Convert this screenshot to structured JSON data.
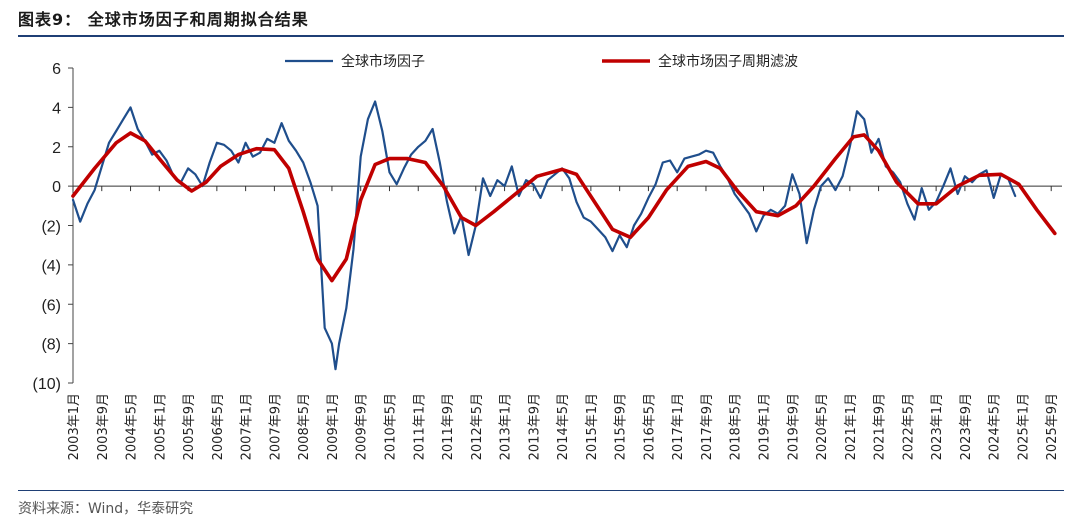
{
  "header": {
    "title": "图表9：  全球市场因子和周期拟合结果"
  },
  "footer": {
    "source": "资料来源：Wind，华泰研究"
  },
  "chart_data": {
    "type": "line",
    "ylim": [
      -10,
      6
    ],
    "yticks": [
      6,
      4,
      2,
      0,
      -2,
      -4,
      -6,
      -8,
      -10
    ],
    "ytick_labels": [
      "6",
      "4",
      "2",
      "0",
      "(2)",
      "(4)",
      "(6)",
      "(8)",
      "(10)"
    ],
    "xlim": [
      "2003-01",
      "2025-12"
    ],
    "xtick_labels": [
      "2003年1月",
      "2003年9月",
      "2004年5月",
      "2005年1月",
      "2005年9月",
      "2006年5月",
      "2007年1月",
      "2007年9月",
      "2008年5月",
      "2009年1月",
      "2009年9月",
      "2010年5月",
      "2011年1月",
      "2011年9月",
      "2012年5月",
      "2013年1月",
      "2013年9月",
      "2014年5月",
      "2015年1月",
      "2015年9月",
      "2016年5月",
      "2017年1月",
      "2017年9月",
      "2018年5月",
      "2019年1月",
      "2019年9月",
      "2020年5月",
      "2021年1月",
      "2021年9月",
      "2022年5月",
      "2023年1月",
      "2023年9月",
      "2024年5月",
      "2025年1月",
      "2025年9月"
    ],
    "grid": false,
    "legend_position": "top",
    "series": [
      {
        "name": "全球市场因子",
        "color": "#1f4e8c",
        "points": [
          [
            "2003-01",
            -0.7
          ],
          [
            "2003-03",
            -1.8
          ],
          [
            "2003-05",
            -0.9
          ],
          [
            "2003-07",
            -0.2
          ],
          [
            "2003-09",
            1.0
          ],
          [
            "2003-11",
            2.2
          ],
          [
            "2004-01",
            2.8
          ],
          [
            "2004-03",
            3.4
          ],
          [
            "2004-05",
            4.0
          ],
          [
            "2004-07",
            2.9
          ],
          [
            "2004-09",
            2.3
          ],
          [
            "2004-11",
            1.6
          ],
          [
            "2005-01",
            1.8
          ],
          [
            "2005-03",
            1.3
          ],
          [
            "2005-05",
            0.5
          ],
          [
            "2005-07",
            0.2
          ],
          [
            "2005-09",
            0.9
          ],
          [
            "2005-11",
            0.6
          ],
          [
            "2006-01",
            0.0
          ],
          [
            "2006-03",
            1.2
          ],
          [
            "2006-05",
            2.2
          ],
          [
            "2006-07",
            2.1
          ],
          [
            "2006-09",
            1.8
          ],
          [
            "2006-11",
            1.2
          ],
          [
            "2007-01",
            2.2
          ],
          [
            "2007-03",
            1.5
          ],
          [
            "2007-05",
            1.7
          ],
          [
            "2007-07",
            2.4
          ],
          [
            "2007-09",
            2.2
          ],
          [
            "2007-11",
            3.2
          ],
          [
            "2008-01",
            2.3
          ],
          [
            "2008-03",
            1.8
          ],
          [
            "2008-05",
            1.2
          ],
          [
            "2008-07",
            0.2
          ],
          [
            "2008-09",
            -1.0
          ],
          [
            "2008-11",
            -7.2
          ],
          [
            "2009-01",
            -8.0
          ],
          [
            "2009-02",
            -9.3
          ],
          [
            "2009-03",
            -8.0
          ],
          [
            "2009-05",
            -6.2
          ],
          [
            "2009-07",
            -3.2
          ],
          [
            "2009-09",
            1.5
          ],
          [
            "2009-11",
            3.4
          ],
          [
            "2010-01",
            4.3
          ],
          [
            "2010-03",
            2.8
          ],
          [
            "2010-05",
            0.7
          ],
          [
            "2010-07",
            0.1
          ],
          [
            "2010-09",
            0.9
          ],
          [
            "2010-11",
            1.6
          ],
          [
            "2011-01",
            2.0
          ],
          [
            "2011-03",
            2.3
          ],
          [
            "2011-05",
            2.9
          ],
          [
            "2011-07",
            1.2
          ],
          [
            "2011-09",
            -0.8
          ],
          [
            "2011-11",
            -2.4
          ],
          [
            "2012-01",
            -1.5
          ],
          [
            "2012-03",
            -3.5
          ],
          [
            "2012-05",
            -2.0
          ],
          [
            "2012-07",
            0.4
          ],
          [
            "2012-09",
            -0.5
          ],
          [
            "2012-11",
            0.3
          ],
          [
            "2013-01",
            0.0
          ],
          [
            "2013-03",
            1.0
          ],
          [
            "2013-05",
            -0.5
          ],
          [
            "2013-07",
            0.3
          ],
          [
            "2013-09",
            0.1
          ],
          [
            "2013-11",
            -0.6
          ],
          [
            "2014-01",
            0.3
          ],
          [
            "2014-03",
            0.6
          ],
          [
            "2014-05",
            0.9
          ],
          [
            "2014-07",
            0.4
          ],
          [
            "2014-09",
            -0.8
          ],
          [
            "2014-11",
            -1.6
          ],
          [
            "2015-01",
            -1.8
          ],
          [
            "2015-03",
            -2.2
          ],
          [
            "2015-05",
            -2.6
          ],
          [
            "2015-07",
            -3.3
          ],
          [
            "2015-09",
            -2.5
          ],
          [
            "2015-11",
            -3.1
          ],
          [
            "2016-01",
            -2.0
          ],
          [
            "2016-03",
            -1.4
          ],
          [
            "2016-05",
            -0.6
          ],
          [
            "2016-07",
            0.1
          ],
          [
            "2016-09",
            1.2
          ],
          [
            "2016-11",
            1.3
          ],
          [
            "2017-01",
            0.7
          ],
          [
            "2017-03",
            1.4
          ],
          [
            "2017-05",
            1.5
          ],
          [
            "2017-07",
            1.6
          ],
          [
            "2017-09",
            1.8
          ],
          [
            "2017-11",
            1.7
          ],
          [
            "2018-01",
            1.0
          ],
          [
            "2018-03",
            0.4
          ],
          [
            "2018-05",
            -0.4
          ],
          [
            "2018-07",
            -0.9
          ],
          [
            "2018-09",
            -1.4
          ],
          [
            "2018-11",
            -2.3
          ],
          [
            "2019-01",
            -1.5
          ],
          [
            "2019-03",
            -1.2
          ],
          [
            "2019-05",
            -1.4
          ],
          [
            "2019-07",
            -1.0
          ],
          [
            "2019-09",
            0.6
          ],
          [
            "2019-11",
            -0.4
          ],
          [
            "2020-01",
            -2.9
          ],
          [
            "2020-03",
            -1.2
          ],
          [
            "2020-05",
            0.0
          ],
          [
            "2020-07",
            0.4
          ],
          [
            "2020-09",
            -0.2
          ],
          [
            "2020-11",
            0.5
          ],
          [
            "2021-01",
            2.0
          ],
          [
            "2021-03",
            3.8
          ],
          [
            "2021-05",
            3.4
          ],
          [
            "2021-07",
            1.7
          ],
          [
            "2021-09",
            2.4
          ],
          [
            "2021-11",
            1.0
          ],
          [
            "2022-01",
            0.7
          ],
          [
            "2022-03",
            0.2
          ],
          [
            "2022-05",
            -0.9
          ],
          [
            "2022-07",
            -1.7
          ],
          [
            "2022-09",
            -0.1
          ],
          [
            "2022-11",
            -1.2
          ],
          [
            "2023-01",
            -0.8
          ],
          [
            "2023-03",
            0.0
          ],
          [
            "2023-05",
            0.9
          ],
          [
            "2023-07",
            -0.4
          ],
          [
            "2023-09",
            0.5
          ],
          [
            "2023-11",
            0.2
          ],
          [
            "2024-01",
            0.6
          ],
          [
            "2024-03",
            0.8
          ],
          [
            "2024-05",
            -0.6
          ],
          [
            "2024-07",
            0.6
          ],
          [
            "2024-09",
            0.4
          ],
          [
            "2024-11",
            -0.5
          ]
        ]
      },
      {
        "name": "全球市场因子周期滤波",
        "color": "#c00000",
        "points": [
          [
            "2003-01",
            -0.5
          ],
          [
            "2003-07",
            0.9
          ],
          [
            "2004-01",
            2.2
          ],
          [
            "2004-05",
            2.7
          ],
          [
            "2004-09",
            2.3
          ],
          [
            "2005-01",
            1.4
          ],
          [
            "2005-06",
            0.3
          ],
          [
            "2005-10",
            -0.25
          ],
          [
            "2006-02",
            0.2
          ],
          [
            "2006-06",
            1.0
          ],
          [
            "2006-11",
            1.6
          ],
          [
            "2007-04",
            1.9
          ],
          [
            "2007-09",
            1.85
          ],
          [
            "2008-01",
            0.9
          ],
          [
            "2008-05",
            -1.3
          ],
          [
            "2008-09",
            -3.7
          ],
          [
            "2009-01",
            -4.8
          ],
          [
            "2009-05",
            -3.7
          ],
          [
            "2009-09",
            -0.7
          ],
          [
            "2010-01",
            1.1
          ],
          [
            "2010-05",
            1.4
          ],
          [
            "2010-10",
            1.4
          ],
          [
            "2011-03",
            1.2
          ],
          [
            "2011-08",
            0.0
          ],
          [
            "2012-01",
            -1.6
          ],
          [
            "2012-05",
            -2.0
          ],
          [
            "2012-10",
            -1.3
          ],
          [
            "2013-04",
            -0.4
          ],
          [
            "2013-10",
            0.5
          ],
          [
            "2014-05",
            0.85
          ],
          [
            "2014-09",
            0.6
          ],
          [
            "2015-02",
            -0.8
          ],
          [
            "2015-07",
            -2.2
          ],
          [
            "2015-12",
            -2.6
          ],
          [
            "2016-05",
            -1.6
          ],
          [
            "2016-10",
            -0.2
          ],
          [
            "2017-04",
            1.0
          ],
          [
            "2017-09",
            1.25
          ],
          [
            "2018-01",
            0.9
          ],
          [
            "2018-06",
            -0.3
          ],
          [
            "2018-11",
            -1.3
          ],
          [
            "2019-05",
            -1.5
          ],
          [
            "2019-10",
            -1.0
          ],
          [
            "2020-03",
            0.0
          ],
          [
            "2020-09",
            1.4
          ],
          [
            "2021-02",
            2.5
          ],
          [
            "2021-05",
            2.6
          ],
          [
            "2021-09",
            1.8
          ],
          [
            "2022-02",
            0.2
          ],
          [
            "2022-08",
            -0.9
          ],
          [
            "2023-01",
            -0.9
          ],
          [
            "2023-07",
            0.0
          ],
          [
            "2024-01",
            0.55
          ],
          [
            "2024-07",
            0.6
          ],
          [
            "2024-12",
            0.1
          ],
          [
            "2025-05",
            -1.2
          ],
          [
            "2025-10",
            -2.4
          ]
        ]
      }
    ]
  }
}
